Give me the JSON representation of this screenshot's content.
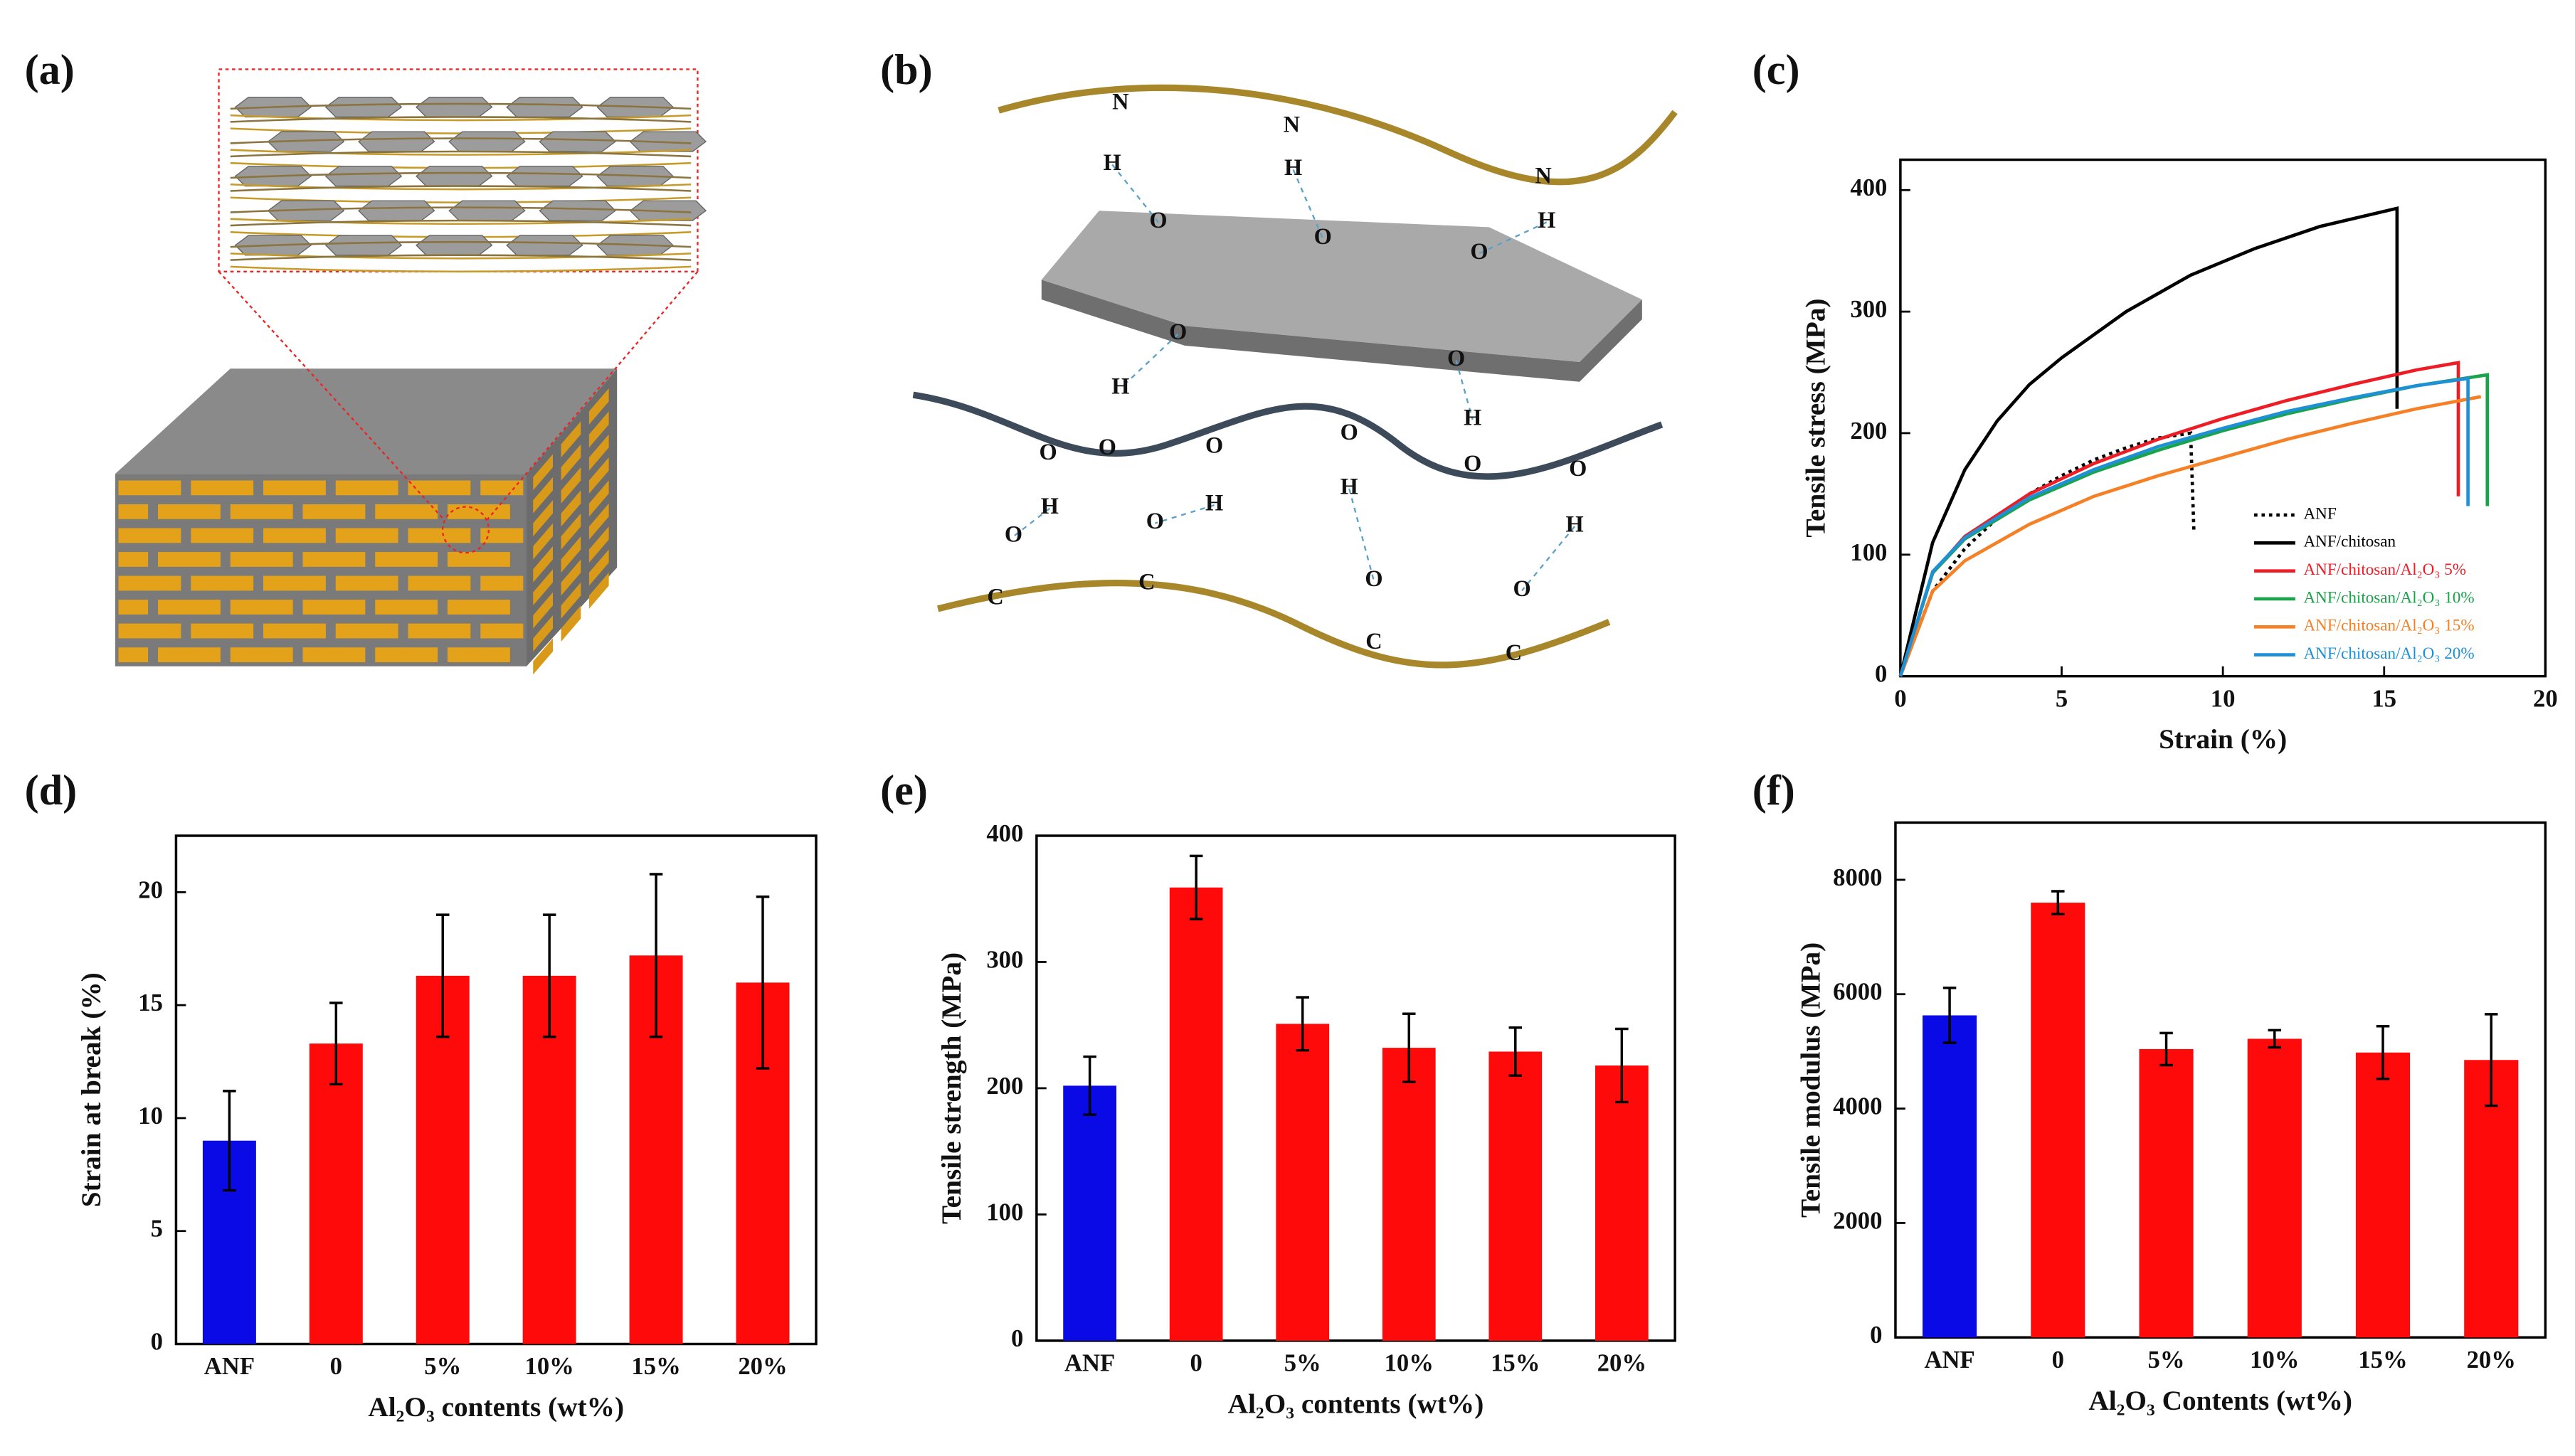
{
  "panel_labels": [
    "(a)",
    "(b)",
    "(c)",
    "(d)",
    "(e)",
    "(f)"
  ],
  "diagram_b": {
    "atoms": [
      "N",
      "H",
      "O",
      "N",
      "H",
      "O",
      "N",
      "H",
      "O",
      "O",
      "H",
      "O",
      "O",
      "H",
      "O",
      "O",
      "H",
      "O",
      "H",
      "O",
      "H",
      "O",
      "H",
      "O",
      "C",
      "O",
      "C",
      "O",
      "C",
      "O",
      "C"
    ]
  },
  "chart_data": [
    {
      "type": "line",
      "xlabel": "Strain (%)",
      "ylabel": "Tensile stress (MPa)",
      "xlim": [
        0,
        20
      ],
      "xticks": [
        0,
        5,
        10,
        15,
        20
      ],
      "ylim": [
        0,
        425
      ],
      "yticks": [
        0,
        100,
        200,
        300,
        400
      ],
      "series": [
        {
          "name": "ANF",
          "color": "#000000",
          "style": "dotted",
          "x": [
            0,
            1,
            2,
            3,
            4,
            5,
            6,
            7,
            8,
            9,
            9.1
          ],
          "values": [
            0,
            70,
            105,
            130,
            150,
            165,
            178,
            188,
            196,
            200,
            120
          ]
        },
        {
          "name": "ANF/chitosan",
          "color": "#000000",
          "style": "solid",
          "x": [
            0,
            1,
            2,
            3,
            4,
            5,
            7,
            9,
            11,
            13,
            15.4,
            15.4
          ],
          "values": [
            0,
            110,
            170,
            210,
            240,
            262,
            300,
            330,
            352,
            370,
            385,
            220
          ]
        },
        {
          "name": "ANF/chitosan/Al₂O₃ 5%",
          "color": "#ee1c25",
          "style": "solid",
          "x": [
            0,
            1,
            2,
            4,
            6,
            8,
            10,
            12,
            14,
            16,
            17.3,
            17.3
          ],
          "values": [
            0,
            85,
            115,
            150,
            175,
            195,
            212,
            227,
            240,
            252,
            258,
            148
          ]
        },
        {
          "name": "ANF/chitosan/Al₂O₃ 10%",
          "color": "#1aa34a",
          "style": "solid",
          "x": [
            0,
            1,
            2,
            4,
            6,
            8,
            10,
            12,
            14,
            16,
            18.2,
            18.2
          ],
          "values": [
            0,
            85,
            113,
            145,
            168,
            186,
            202,
            216,
            228,
            239,
            248,
            140
          ]
        },
        {
          "name": "ANF/chitosan/Al₂O₃ 15%",
          "color": "#f58025",
          "style": "solid",
          "x": [
            0,
            1,
            2,
            4,
            6,
            8,
            10,
            12,
            14,
            16,
            18
          ],
          "values": [
            0,
            70,
            95,
            125,
            148,
            165,
            180,
            195,
            208,
            220,
            230
          ]
        },
        {
          "name": "ANF/chitosan/Al₂O₃ 20%",
          "color": "#1e90d6",
          "style": "solid",
          "x": [
            0,
            1,
            2,
            4,
            6,
            8,
            10,
            12,
            14,
            16,
            17.6,
            17.6
          ],
          "values": [
            0,
            86,
            114,
            147,
            170,
            189,
            204,
            218,
            229,
            239,
            245,
            140
          ]
        }
      ]
    },
    {
      "type": "bar",
      "xlabel": "Al₂O₃ contents (wt%)",
      "ylabel": "Strain at break (%)",
      "categories": [
        "ANF",
        "0",
        "5%",
        "10%",
        "15%",
        "20%"
      ],
      "values": [
        9.0,
        13.3,
        16.3,
        16.3,
        17.2,
        16.0
      ],
      "errors": [
        2.2,
        1.8,
        2.7,
        2.7,
        3.6,
        3.8
      ],
      "colors": [
        "#0a0ae6",
        "#ff0a0a",
        "#ff0a0a",
        "#ff0a0a",
        "#ff0a0a",
        "#ff0a0a"
      ],
      "ylim": [
        0,
        22.5
      ],
      "yticks": [
        0,
        5,
        10,
        15,
        20
      ]
    },
    {
      "type": "bar",
      "xlabel": "Al₂O₃ contents (wt%)",
      "ylabel": "Tensile strength (MPa)",
      "categories": [
        "ANF",
        "0",
        "5%",
        "10%",
        "15%",
        "20%"
      ],
      "values": [
        202,
        359,
        251,
        232,
        229,
        218
      ],
      "errors": [
        23,
        25,
        21,
        27,
        19,
        29
      ],
      "colors": [
        "#0a0ae6",
        "#ff0a0a",
        "#ff0a0a",
        "#ff0a0a",
        "#ff0a0a",
        "#ff0a0a"
      ],
      "ylim": [
        0,
        400
      ],
      "yticks": [
        0,
        100,
        200,
        300,
        400
      ]
    },
    {
      "type": "bar",
      "xlabel": "Al₂O₃ Contents (wt%)",
      "ylabel": "Tensile modulus (MPa)",
      "categories": [
        "ANF",
        "0",
        "5%",
        "10%",
        "15%",
        "20%"
      ],
      "values": [
        5630,
        7600,
        5040,
        5220,
        4980,
        4850
      ],
      "errors": [
        480,
        200,
        280,
        150,
        460,
        800
      ],
      "colors": [
        "#0a0ae6",
        "#ff0a0a",
        "#ff0a0a",
        "#ff0a0a",
        "#ff0a0a",
        "#ff0a0a"
      ],
      "ylim": [
        0,
        9000
      ],
      "yticks": [
        0,
        2000,
        4000,
        6000,
        8000
      ]
    }
  ]
}
